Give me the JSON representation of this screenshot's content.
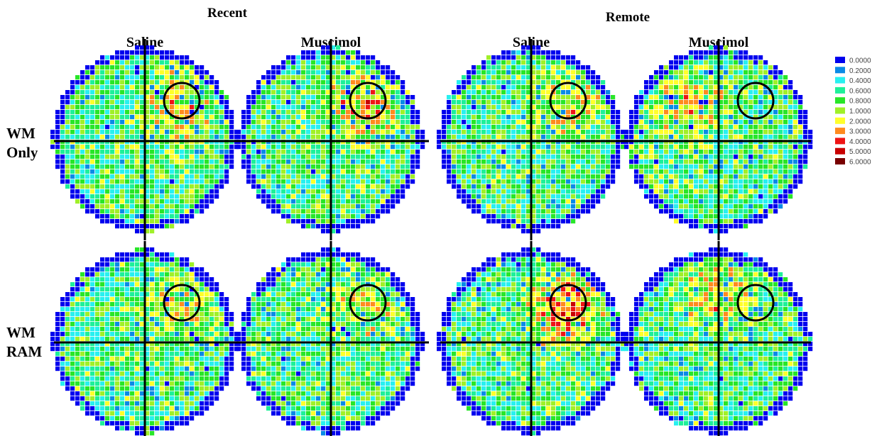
{
  "chart_data": {
    "type": "heatmap",
    "group_titles": [
      "Recent",
      "Remote"
    ],
    "condition_labels": [
      "Saline",
      "Muscimol",
      "Saline",
      "Muscimol"
    ],
    "row_labels": [
      [
        "WM",
        "Only"
      ],
      [
        "WM",
        "RAM"
      ]
    ],
    "colorscale": {
      "values": [
        "0.0000",
        "0.2000",
        "0.4000",
        "0.6000",
        "0.8000",
        "1.0000",
        "2.0000",
        "3.0000",
        "4.0000",
        "5.0000",
        "6.0000"
      ],
      "colors": [
        "#0000ee",
        "#0a8ae6",
        "#28f0f0",
        "#1ef09a",
        "#28e628",
        "#a0f028",
        "#ffff2a",
        "#ff8a1e",
        "#ee1414",
        "#c80000",
        "#780000"
      ]
    },
    "panels": [
      {
        "row": "WM Only",
        "group": "Recent",
        "condition": "Saline",
        "hot_quadrant": "NE",
        "hot_level": 0.55,
        "target_quadrant": "NE"
      },
      {
        "row": "WM Only",
        "group": "Recent",
        "condition": "Muscimol",
        "hot_quadrant": "NE",
        "hot_level": 0.75,
        "target_quadrant": "NE"
      },
      {
        "row": "WM Only",
        "group": "Remote",
        "condition": "Saline",
        "hot_quadrant": "NE",
        "hot_level": 0.55,
        "target_quadrant": "NE"
      },
      {
        "row": "WM Only",
        "group": "Remote",
        "condition": "Muscimol",
        "hot_quadrant": "NW",
        "hot_level": 0.6,
        "target_quadrant": "NE"
      },
      {
        "row": "WM RAM",
        "group": "Recent",
        "condition": "Saline",
        "hot_quadrant": "NE",
        "hot_level": 0.5,
        "target_quadrant": "NE"
      },
      {
        "row": "WM RAM",
        "group": "Recent",
        "condition": "Muscimol",
        "hot_quadrant": "NE",
        "hot_level": 0.45,
        "target_quadrant": "NE"
      },
      {
        "row": "WM RAM",
        "group": "Remote",
        "condition": "Saline",
        "hot_quadrant": "NE",
        "hot_level": 0.9,
        "target_quadrant": "NE"
      },
      {
        "row": "WM RAM",
        "group": "Remote",
        "condition": "Muscimol",
        "hot_quadrant": "N",
        "hot_level": 0.6,
        "target_quadrant": "NE"
      }
    ]
  }
}
